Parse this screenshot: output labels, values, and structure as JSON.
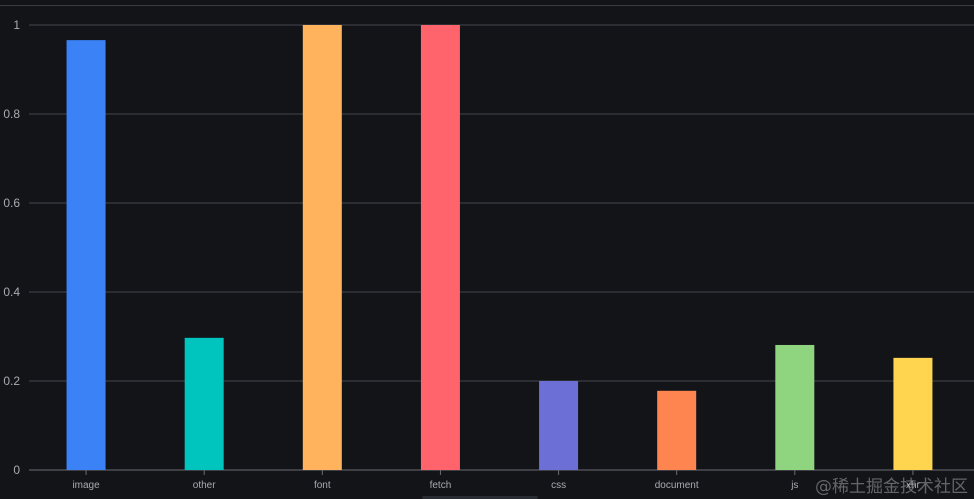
{
  "chart_data": {
    "type": "bar",
    "categories": [
      "image",
      "other",
      "font",
      "fetch",
      "css",
      "document",
      "js",
      "xhr"
    ],
    "values": [
      0.966,
      0.297,
      1.0,
      1.0,
      0.2,
      0.178,
      0.281,
      0.252
    ],
    "colors": [
      "#3b82f6",
      "#00c4be",
      "#ffb35c",
      "#ff636b",
      "#6b6fd6",
      "#ff8550",
      "#8fd57f",
      "#ffd54f"
    ],
    "ylim": [
      0,
      1
    ],
    "yticks": [
      0,
      0.2,
      0.4,
      0.6,
      0.8,
      1
    ],
    "ytick_labels": [
      "0",
      "0.2",
      "0.4",
      "0.6",
      "0.8",
      "1"
    ],
    "grid": true,
    "title": "",
    "xlabel": "",
    "ylabel": ""
  },
  "watermark": "@稀土掘金技术社区"
}
